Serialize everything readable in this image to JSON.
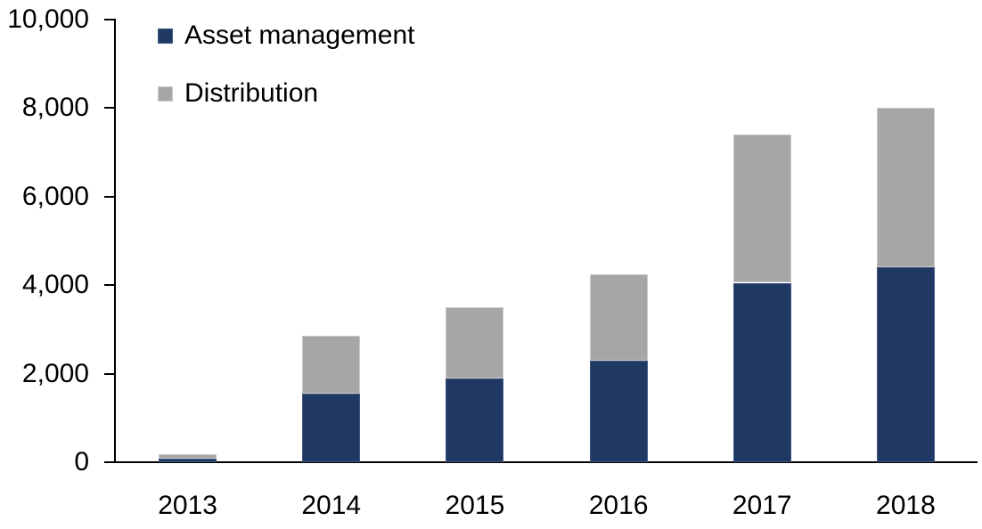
{
  "chart_data": {
    "type": "bar",
    "stacked": true,
    "title": "",
    "xlabel": "",
    "ylabel": "",
    "categories": [
      "2013",
      "2014",
      "2015",
      "2016",
      "2017",
      "2018"
    ],
    "series": [
      {
        "name": "Asset management",
        "color": "#1F3864",
        "border_color": "#42567F",
        "values": [
          90,
          1550,
          1900,
          2300,
          4050,
          4400
        ]
      },
      {
        "name": "Distribution",
        "color": "#A6A6A6",
        "border_color": "#C9C9C9",
        "values": [
          100,
          1300,
          1600,
          1950,
          3350,
          3600
        ]
      }
    ],
    "totals": [
      190,
      2850,
      3500,
      4250,
      7400,
      8000
    ],
    "ylim": [
      0,
      10000
    ],
    "ytick_interval": 2000,
    "ytick_labels": [
      "0",
      "2,000",
      "4,000",
      "6,000",
      "8,000",
      "10,000"
    ],
    "grid": false,
    "legend_position": "top-left",
    "axis_color": "#000000",
    "text_color": "#000000",
    "background_color": "#FFFFFF"
  }
}
